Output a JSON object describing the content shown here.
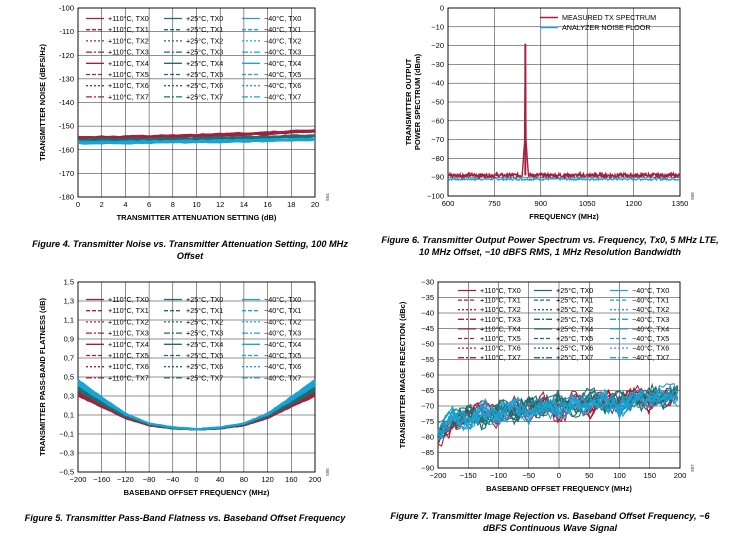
{
  "colors": {
    "c110": "#a4203e",
    "c25": "#1f6e6e",
    "cm40": "#1aa3d4",
    "measured": "#a4203e",
    "noise": "#1aa3d4"
  },
  "chart_data": [
    {
      "id": "fig4",
      "type": "line",
      "fig_id": "504",
      "title": "Figure 4. Transmitter Noise vs. Transmitter Attenuation Setting, 100 MHz Offset",
      "caption_lines": [
        "Figure 4. Transmitter Noise vs. Transmitter Attenuation Setting, 100 MHz",
        "Offset"
      ],
      "xlabel": "TRANSMITTER ATTENUATION SETTING (dB)",
      "ylabel": "TRANSMITTER NOISE (dBFS/Hz)",
      "xlim": [
        0,
        20
      ],
      "ylim": [
        -180,
        -100
      ],
      "xticks": [
        "0",
        "2",
        "4",
        "6",
        "8",
        "10",
        "12",
        "14",
        "16",
        "18",
        "20"
      ],
      "yticks": [
        "-180",
        "-170",
        "-160",
        "-150",
        "-140",
        "-130",
        "-120",
        "-110",
        "-100"
      ],
      "legend": [
        [
          "+110°C, TX0",
          "+25°C, TX0",
          "−40°C, TX0"
        ],
        [
          "+110°C, TX1",
          "+25°C, TX1",
          "−40°C, TX1"
        ],
        [
          "+110°C, TX2",
          "+25°C, TX2",
          "−40°C, TX2"
        ],
        [
          "+110°C, TX3",
          "+25°C, TX3",
          "−40°C, TX3"
        ],
        [
          "+110°C, TX4",
          "+25°C, TX4",
          "−40°C, TX4"
        ],
        [
          "+110°C, TX5",
          "+25°C, TX5",
          "−40°C, TX5"
        ],
        [
          "+110°C, TX6",
          "+25°C, TX6",
          "−40°C, TX6"
        ],
        [
          "+110°C, TX7",
          "+25°C, TX7",
          "−40°C, TX7"
        ]
      ],
      "series": [
        {
          "name": "+110°C",
          "x": [
            0,
            5,
            10,
            15,
            20
          ],
          "values": [
            -155,
            -154.6,
            -154,
            -153.2,
            -152
          ]
        },
        {
          "name": "+25°C",
          "x": [
            0,
            5,
            10,
            15,
            20
          ],
          "values": [
            -156,
            -155.7,
            -155.3,
            -154.8,
            -154.2
          ]
        },
        {
          "name": "−40°C",
          "x": [
            0,
            5,
            10,
            15,
            20
          ],
          "values": [
            -157,
            -156.8,
            -156.5,
            -156.1,
            -155.6
          ]
        }
      ]
    },
    {
      "id": "fig5",
      "type": "line",
      "fig_id": "505",
      "title": "Figure 5. Transmitter Pass-Band Flatness vs. Baseband Offset Frequency",
      "caption_lines": [
        "Figure 5. Transmitter Pass-Band Flatness vs. Baseband Offset Frequency"
      ],
      "xlabel": "BASEBAND OFFSET FREQUENCY (MHz)",
      "ylabel": "TRANSMITTER PASS-BAND FLATNESS (dB)",
      "xlim": [
        -200,
        200
      ],
      "ylim": [
        -0.5,
        1.5
      ],
      "xticks": [
        "−200",
        "−160",
        "−120",
        "−80",
        "−40",
        "0",
        "40",
        "80",
        "120",
        "160",
        "200"
      ],
      "yticks": [
        "−0,5",
        "−0,3",
        "−0,1",
        "0,1",
        "0,3",
        "0,5",
        "0,7",
        "0,9",
        "1,1",
        "1,3",
        "1.5"
      ],
      "legend": [
        [
          "+110°C, TX0",
          "+25°C, TX0",
          "−40°C, TX0"
        ],
        [
          "+110°C, TX1",
          "+25°C, TX1",
          "−40°C, TX1"
        ],
        [
          "+110°C, TX2",
          "+25°C, TX2",
          "−40°C, TX2"
        ],
        [
          "+110°C, TX3",
          "+25°C, TX3",
          "−40°C, TX3"
        ],
        [
          "+110°C, TX4",
          "+25°C, TX4",
          "−40°C, TX4"
        ],
        [
          "+110°C, TX5",
          "+25°C, TX5",
          "−40°C, TX5"
        ],
        [
          "+110°C, TX6",
          "+25°C, TX6",
          "−40°C, TX6"
        ],
        [
          "+110°C, TX7",
          "+25°C, TX7",
          "−40°C, TX7"
        ]
      ],
      "series": [
        {
          "name": "+110°C",
          "x": [
            -200,
            -160,
            -120,
            -80,
            -40,
            0,
            40,
            80,
            120,
            160,
            200
          ],
          "values": [
            0.32,
            0.2,
            0.07,
            -0.01,
            -0.04,
            -0.05,
            -0.04,
            -0.01,
            0.07,
            0.2,
            0.32
          ]
        },
        {
          "name": "+25°C",
          "x": [
            -200,
            -160,
            -120,
            -80,
            -40,
            0,
            40,
            80,
            120,
            160,
            200
          ],
          "values": [
            0.38,
            0.23,
            0.09,
            0.0,
            -0.04,
            -0.05,
            -0.04,
            0.0,
            0.09,
            0.23,
            0.38
          ]
        },
        {
          "name": "−40°C",
          "x": [
            -200,
            -160,
            -120,
            -80,
            -40,
            0,
            40,
            80,
            120,
            160,
            200
          ],
          "values": [
            0.44,
            0.27,
            0.11,
            0.01,
            -0.03,
            -0.05,
            -0.03,
            0.01,
            0.11,
            0.27,
            0.44
          ]
        }
      ]
    },
    {
      "id": "fig6",
      "type": "line",
      "fig_id": "506",
      "title": "Figure 6. Transmitter Output Power Spectrum vs. Frequency, Tx0, 5 MHz LTE, 10 MHz Offset, −10 dBFS RMS, 1 MHz Resolution Bandwidth",
      "caption_lines": [
        "Figure 6. Transmitter Output Power Spectrum vs. Frequency, Tx0, 5 MHz LTE,",
        "10 MHz Offset, −10 dBFS RMS, 1 MHz Resolution Bandwidth"
      ],
      "xlabel": "FREQUENCY (MHz)",
      "ylabel": "TRANSMITTER OUTPUT POWER SPECTRUM (dBm)",
      "ylabel_lines": [
        "TRANSMITTER OUTPUT",
        "POWER SPECTRUM (dBm)"
      ],
      "xlim": [
        600,
        1350
      ],
      "ylim": [
        -100,
        0
      ],
      "xticks": [
        "600",
        "750",
        "900",
        "1050",
        "1200",
        "1350"
      ],
      "yticks": [
        "−100",
        "−90",
        "−80",
        "−70",
        "−60",
        "−50",
        "−40",
        "−30",
        "−20",
        "−10",
        "0"
      ],
      "legend": [
        [
          "MEASURED TX SPECTRUM"
        ],
        [
          "ANALYZER NOISE FLOOR"
        ]
      ],
      "series": [
        {
          "name": "MEASURED TX SPECTRUM",
          "floor": -89,
          "peak_x": [
            840,
            848,
            850,
            852,
            860
          ],
          "peak_values": [
            -89,
            -70,
            -19,
            -70,
            -89
          ]
        },
        {
          "name": "ANALYZER NOISE FLOOR",
          "values_constant": -91
        }
      ]
    },
    {
      "id": "fig7",
      "type": "line",
      "fig_id": "507",
      "title": "Figure 7. Transmitter Image Rejection vs. Baseband Offset Frequency, −6 dBFS Continuous Wave Signal",
      "caption_lines": [
        "Figure 7. Transmitter Image Rejection vs. Baseband Offset Frequency, −6",
        "dBFS Continuous Wave Signal"
      ],
      "xlabel": "BASEBAND OFFSET FREQUENCY (MHz)",
      "ylabel": "TRANSMITTER IMAGE REJECTION (dBc)",
      "xlim": [
        -200,
        200
      ],
      "ylim": [
        -90,
        -30
      ],
      "xticks": [
        "−200",
        "−150",
        "−100",
        "−50",
        "0",
        "50",
        "100",
        "150",
        "200"
      ],
      "yticks": [
        "−90",
        "−85",
        "−80",
        "−75",
        "−70",
        "−65",
        "−60",
        "−55",
        "−50",
        "−45",
        "−40",
        "−35",
        "−30"
      ],
      "legend": [
        [
          "+110°C, TX0",
          "+25°C, TX0",
          "−40°C, TX0"
        ],
        [
          "+110°C, TX1",
          "+25°C, TX1",
          "−40°C, TX1"
        ],
        [
          "+110°C, TX2",
          "+25°C, TX2",
          "−40°C, TX2"
        ],
        [
          "+110°C, TX3",
          "+25°C, TX3",
          "−40°C, TX3"
        ],
        [
          "+110°C, TX4",
          "+25°C, TX4",
          "−40°C, TX4"
        ],
        [
          "+110°C, TX5",
          "+25°C, TX5",
          "−40°C, TX5"
        ],
        [
          "+110°C, TX6",
          "+25°C, TX6",
          "−40°C, TX6"
        ],
        [
          "+110°C, TX7",
          "+25°C, TX7",
          "−40°C, TX7"
        ]
      ],
      "series": [
        {
          "name": "+110°C",
          "x": [
            -200,
            -175,
            -150,
            -125,
            -100,
            -75,
            -50,
            -25,
            0,
            25,
            50,
            75,
            100,
            125,
            150,
            175,
            200
          ],
          "values": [
            -80,
            -76,
            -73,
            -71,
            -74,
            -70,
            -72,
            -69,
            -73,
            -68,
            -71,
            -67,
            -70,
            -66,
            -69,
            -67,
            -66
          ]
        },
        {
          "name": "+25°C",
          "x": [
            -200,
            -175,
            -150,
            -125,
            -100,
            -75,
            -50,
            -25,
            0,
            25,
            50,
            75,
            100,
            125,
            150,
            175,
            200
          ],
          "values": [
            -78,
            -74,
            -72,
            -75,
            -70,
            -73,
            -69,
            -71,
            -68,
            -72,
            -67,
            -70,
            -68,
            -69,
            -66,
            -68,
            -65
          ]
        },
        {
          "name": "−40°C",
          "x": [
            -200,
            -175,
            -150,
            -125,
            -100,
            -75,
            -50,
            -25,
            0,
            25,
            50,
            75,
            100,
            125,
            150,
            175,
            200
          ],
          "values": [
            -79,
            -73,
            -76,
            -71,
            -74,
            -69,
            -73,
            -70,
            -72,
            -69,
            -70,
            -68,
            -71,
            -67,
            -68,
            -66,
            -67
          ]
        }
      ]
    }
  ]
}
